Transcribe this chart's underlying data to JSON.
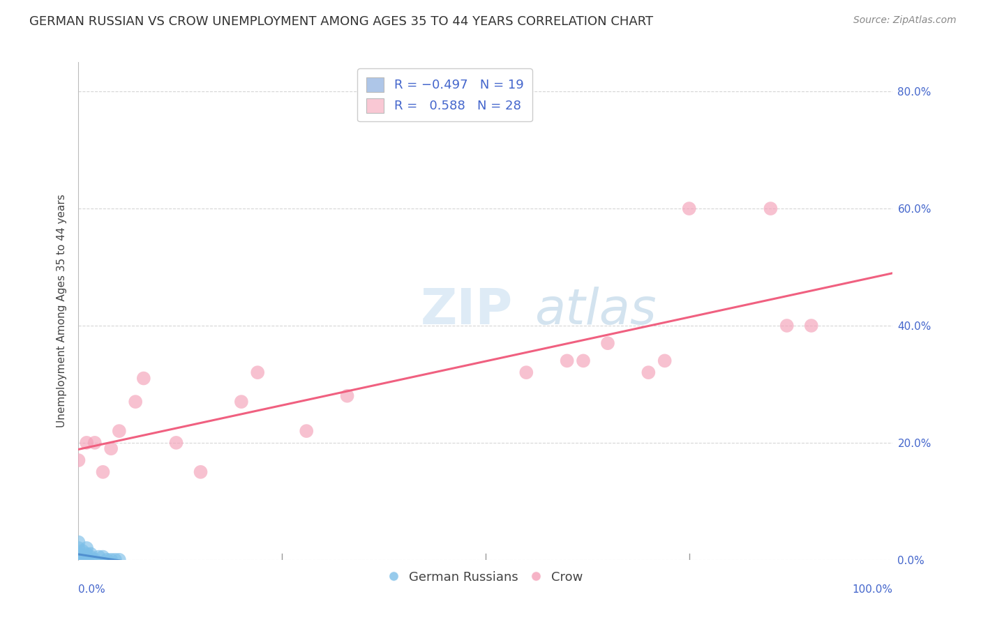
{
  "title": "GERMAN RUSSIAN VS CROW UNEMPLOYMENT AMONG AGES 35 TO 44 YEARS CORRELATION CHART",
  "source": "Source: ZipAtlas.com",
  "ylabel": "Unemployment Among Ages 35 to 44 years",
  "xlabel_bottom_left": "0.0%",
  "xlabel_bottom_right": "100.0%",
  "xlim": [
    0.0,
    1.0
  ],
  "ylim": [
    0.0,
    0.85
  ],
  "yticks": [
    0.0,
    0.2,
    0.4,
    0.6,
    0.8
  ],
  "ytick_labels": [
    "0.0%",
    "20.0%",
    "40.0%",
    "60.0%",
    "80.0%"
  ],
  "background_color": "#ffffff",
  "grid_color": "#cccccc",
  "blue_legend_color": "#aec6e8",
  "pink_legend_color": "#f9c8d4",
  "blue_dot_color": "#7dbfe8",
  "pink_dot_color": "#f4a0b8",
  "blue_line_color": "#5090d0",
  "pink_line_color": "#f06080",
  "watermark_zip": "ZIP",
  "watermark_atlas": "atlas",
  "german_russian_x": [
    0.0,
    0.0,
    0.0,
    0.0,
    0.0,
    0.0,
    0.0,
    0.0,
    0.005,
    0.005,
    0.005,
    0.01,
    0.01,
    0.01,
    0.01,
    0.015,
    0.015,
    0.02,
    0.025,
    0.03,
    0.035,
    0.04,
    0.045,
    0.05
  ],
  "german_russian_y": [
    0.0,
    0.0,
    0.0,
    0.01,
    0.01,
    0.01,
    0.02,
    0.03,
    0.0,
    0.0,
    0.015,
    0.0,
    0.005,
    0.01,
    0.02,
    0.005,
    0.01,
    0.0,
    0.005,
    0.005,
    0.0,
    0.0,
    0.0,
    0.0
  ],
  "crow_x": [
    0.0,
    0.01,
    0.02,
    0.03,
    0.04,
    0.05,
    0.07,
    0.08,
    0.12,
    0.15,
    0.2,
    0.22,
    0.28,
    0.33,
    0.55,
    0.6,
    0.62,
    0.65,
    0.7,
    0.72,
    0.75,
    0.85,
    0.87,
    0.9
  ],
  "crow_y": [
    0.17,
    0.2,
    0.2,
    0.15,
    0.19,
    0.22,
    0.27,
    0.31,
    0.2,
    0.15,
    0.27,
    0.32,
    0.22,
    0.28,
    0.32,
    0.34,
    0.34,
    0.37,
    0.32,
    0.34,
    0.6,
    0.6,
    0.4,
    0.4
  ],
  "title_fontsize": 13,
  "source_fontsize": 10,
  "axis_label_fontsize": 11,
  "tick_fontsize": 11,
  "legend_fontsize": 13,
  "watermark_fontsize_zip": 52,
  "watermark_fontsize_atlas": 52,
  "watermark_color_zip": "#c8dff0",
  "watermark_color_atlas": "#a8c8e0",
  "dot_size": 200,
  "dot_alpha": 0.65,
  "legend_text_color": "#4466cc",
  "tick_color": "#4466cc"
}
